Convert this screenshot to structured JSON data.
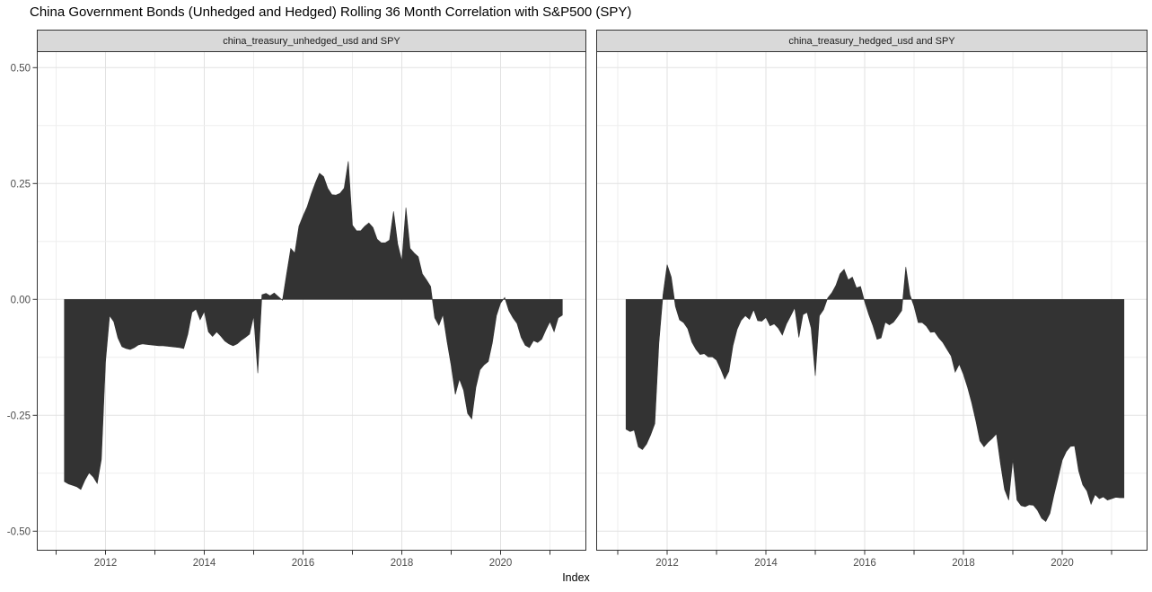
{
  "title": "China Government Bonds (Unhedged and Hedged) Rolling 36 Month Correlation with S&P500 (SPY)",
  "x_axis_title": "Index",
  "colors": {
    "area_fill": "#333333",
    "strip_bg": "#d9d9d9",
    "strip_border": "#333333",
    "panel_border": "#333333",
    "grid_major": "#e2e2e2",
    "grid_minor": "#eeeeee",
    "tick": "#333333",
    "tick_label": "#4d4d4d",
    "title_color": "#000000"
  },
  "y_axis": {
    "ticks": [
      0.5,
      0.25,
      0,
      -0.25,
      -0.5
    ],
    "labels": [
      "0.50",
      "0.25",
      "0.00",
      "-0.25",
      "-0.50"
    ],
    "minor_gridlines": [
      0.375,
      0.125,
      -0.125,
      -0.375
    ]
  },
  "x_axis": {
    "tick_years": [
      2011,
      2012,
      2013,
      2014,
      2015,
      2016,
      2017,
      2018,
      2019,
      2020,
      2021
    ],
    "labeled_years": [
      2012,
      2014,
      2016,
      2018,
      2020
    ],
    "labels": [
      "2012",
      "2014",
      "2016",
      "2018",
      "2020"
    ]
  },
  "chart_data": [
    {
      "type": "area",
      "strip_label": "china_treasury_unhedged_usd and SPY",
      "series_name": "Rolling 36 month correlation: china_treasury_unhedged_usd vs SPY",
      "frequency": "monthly",
      "x_start": 2011.1667,
      "x_step": 0.0833333,
      "xlim": [
        2010.62,
        2021.72
      ],
      "ylim": [
        -0.542,
        0.535
      ],
      "grid": true,
      "legend": "none",
      "values": [
        -0.393,
        -0.398,
        -0.401,
        -0.404,
        -0.41,
        -0.39,
        -0.374,
        -0.383,
        -0.397,
        -0.345,
        -0.135,
        -0.035,
        -0.048,
        -0.083,
        -0.102,
        -0.106,
        -0.108,
        -0.104,
        -0.098,
        -0.096,
        -0.097,
        -0.098,
        -0.099,
        -0.1,
        -0.1,
        -0.101,
        -0.102,
        -0.103,
        -0.104,
        -0.106,
        -0.075,
        -0.028,
        -0.021,
        -0.044,
        -0.026,
        -0.07,
        -0.08,
        -0.07,
        -0.079,
        -0.09,
        -0.096,
        -0.1,
        -0.096,
        -0.088,
        -0.082,
        -0.075,
        -0.036,
        -0.159,
        0.01,
        0.013,
        0.008,
        0.014,
        0.006,
        -0.002,
        0.055,
        0.11,
        0.1,
        0.158,
        0.18,
        0.2,
        0.228,
        0.252,
        0.272,
        0.265,
        0.24,
        0.226,
        0.225,
        0.229,
        0.24,
        0.298,
        0.16,
        0.148,
        0.148,
        0.158,
        0.165,
        0.155,
        0.13,
        0.122,
        0.122,
        0.128,
        0.19,
        0.12,
        0.083,
        0.198,
        0.11,
        0.1,
        0.092,
        0.055,
        0.042,
        0.028,
        -0.04,
        -0.056,
        -0.033,
        -0.091,
        -0.143,
        -0.205,
        -0.172,
        -0.196,
        -0.246,
        -0.258,
        -0.19,
        -0.152,
        -0.141,
        -0.134,
        -0.094,
        -0.035,
        -0.008,
        0.004,
        -0.024,
        -0.04,
        -0.052,
        -0.082,
        -0.099,
        -0.104,
        -0.089,
        -0.093,
        -0.086,
        -0.066,
        -0.048,
        -0.07,
        -0.04,
        -0.034
      ]
    },
    {
      "type": "area",
      "strip_label": "china_treasury_hedged_usd and SPY",
      "series_name": "Rolling 36 month correlation: china_treasury_hedged_usd vs SPY",
      "frequency": "monthly",
      "x_start": 2011.1667,
      "x_step": 0.0833333,
      "xlim": [
        2010.56,
        2021.71
      ],
      "ylim": [
        -0.542,
        0.535
      ],
      "grid": true,
      "legend": "none",
      "values": [
        -0.28,
        -0.285,
        -0.282,
        -0.318,
        -0.324,
        -0.312,
        -0.292,
        -0.268,
        -0.095,
        0.01,
        0.075,
        0.048,
        -0.015,
        -0.044,
        -0.05,
        -0.063,
        -0.092,
        -0.108,
        -0.119,
        -0.117,
        -0.124,
        -0.124,
        -0.131,
        -0.15,
        -0.172,
        -0.155,
        -0.1,
        -0.065,
        -0.045,
        -0.035,
        -0.043,
        -0.022,
        -0.046,
        -0.047,
        -0.039,
        -0.057,
        -0.053,
        -0.062,
        -0.077,
        -0.053,
        -0.036,
        -0.018,
        -0.082,
        -0.033,
        -0.028,
        -0.062,
        -0.165,
        -0.035,
        -0.022,
        0.003,
        0.014,
        0.03,
        0.055,
        0.065,
        0.042,
        0.048,
        0.025,
        0.028,
        -0.005,
        -0.033,
        -0.057,
        -0.086,
        -0.083,
        -0.049,
        -0.055,
        -0.049,
        -0.037,
        -0.024,
        0.07,
        0.01,
        -0.015,
        -0.05,
        -0.05,
        -0.058,
        -0.071,
        -0.07,
        -0.083,
        -0.093,
        -0.108,
        -0.122,
        -0.157,
        -0.14,
        -0.162,
        -0.19,
        -0.223,
        -0.262,
        -0.305,
        -0.318,
        -0.308,
        -0.3,
        -0.29,
        -0.355,
        -0.41,
        -0.433,
        -0.345,
        -0.433,
        -0.445,
        -0.447,
        -0.443,
        -0.444,
        -0.455,
        -0.472,
        -0.479,
        -0.462,
        -0.422,
        -0.385,
        -0.347,
        -0.328,
        -0.317,
        -0.316,
        -0.37,
        -0.4,
        -0.413,
        -0.442,
        -0.421,
        -0.43,
        -0.426,
        -0.433,
        -0.43,
        -0.427,
        -0.428,
        -0.428
      ]
    }
  ]
}
